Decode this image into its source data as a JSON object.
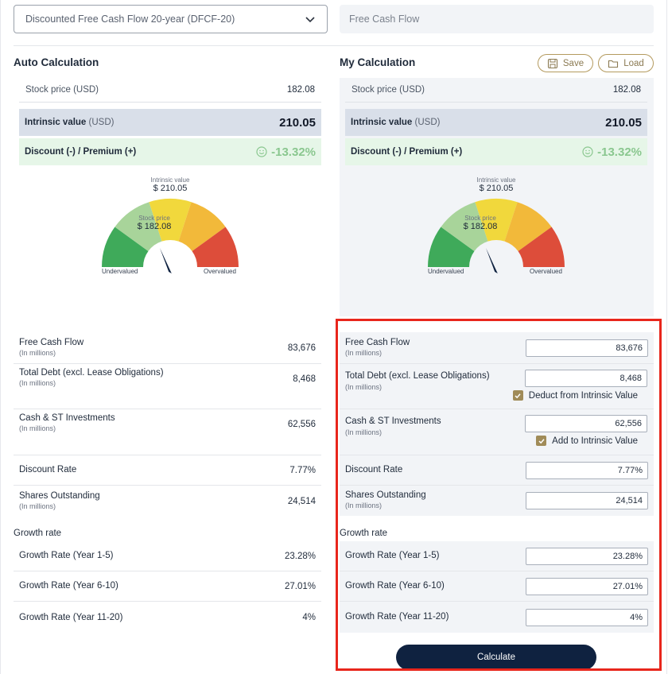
{
  "model_select": {
    "value": "Discounted Free Cash Flow 20-year (DFCF-20)"
  },
  "method_field": {
    "value": "Free Cash Flow"
  },
  "auto": {
    "title": "Auto Calculation",
    "stock_price_label": "Stock price (USD)",
    "stock_price": "182.08",
    "intrinsic_label": "Intrinsic value",
    "intrinsic_unit": "(USD)",
    "intrinsic_value": "210.05",
    "discount_label": "Discount (-) / Premium (+)",
    "discount_value": "-13.32%"
  },
  "mine": {
    "title": "My Calculation",
    "save_label": "Save",
    "load_label": "Load",
    "stock_price_label": "Stock price (USD)",
    "stock_price": "182.08",
    "intrinsic_label": "Intrinsic value",
    "intrinsic_unit": "(USD)",
    "intrinsic_value": "210.05",
    "discount_label": "Discount (-) / Premium (+)",
    "discount_value": "-13.32%"
  },
  "gauge": {
    "intrinsic_label": "Intrinsic value",
    "intrinsic_value": "$ 210.05",
    "stock_label": "Stock price",
    "stock_value": "$ 182.08",
    "left_label": "Undervalued",
    "right_label": "Overvalued",
    "colors": [
      "#3faa5a",
      "#a8d49a",
      "#f1d83c",
      "#f2b93a",
      "#dd4d3a"
    ],
    "needle_color": "#0f2240"
  },
  "inputs": {
    "fcf_label": "Free Cash Flow",
    "fcf_sub": "(In millions)",
    "fcf": "83,676",
    "debt_label": "Total Debt (excl. Lease Obligations)",
    "debt_sub": "(In millions)",
    "debt": "8,468",
    "deduct_label": "Deduct from Intrinsic Value",
    "cash_label": "Cash & ST Investments",
    "cash_sub": "(In millions)",
    "cash": "62,556",
    "add_label": "Add to Intrinsic Value",
    "discount_rate_label": "Discount Rate",
    "discount_rate": "7.77%",
    "shares_label": "Shares Outstanding",
    "shares_sub": "(In millions)",
    "shares": "24,514",
    "growth_title": "Growth rate",
    "g1_label": "Growth Rate (Year 1-5)",
    "g1": "23.28%",
    "g2_label": "Growth Rate (Year 6-10)",
    "g2": "27.01%",
    "g3_label": "Growth Rate (Year 11-20)",
    "g3": "4%"
  },
  "calculate_label": "Calculate",
  "colors": {
    "accent_gold": "#a08b58",
    "navy": "#0f2240",
    "highlight": "#e8261c",
    "positive": "#8ac78f"
  }
}
